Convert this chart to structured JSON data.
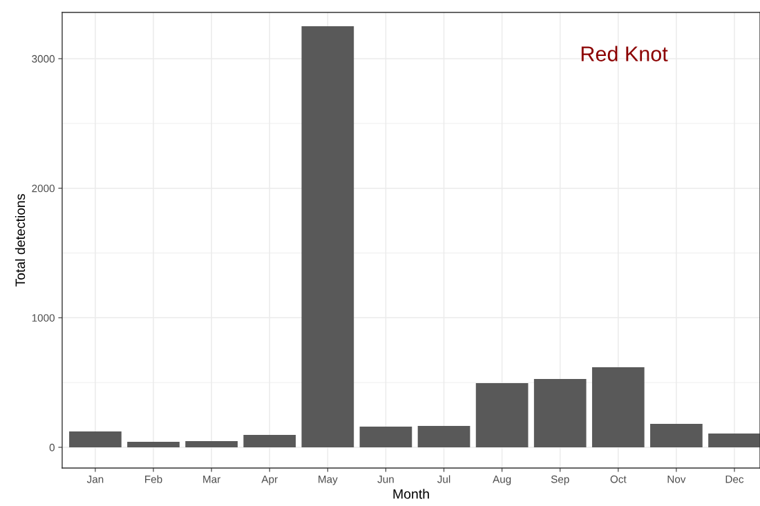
{
  "chart_data": {
    "type": "bar",
    "xlabel": "Month",
    "ylabel": "Total detections",
    "categories": [
      "Jan",
      "Feb",
      "Mar",
      "Apr",
      "May",
      "Jun",
      "Jul",
      "Aug",
      "Sep",
      "Oct",
      "Nov",
      "Dec"
    ],
    "values": [
      123,
      43,
      48,
      96,
      3250,
      160,
      165,
      496,
      528,
      618,
      181,
      107
    ],
    "color": "#595959",
    "ylim": [
      -160,
      3357
    ],
    "yticks": [
      0,
      1000,
      2000,
      3000
    ],
    "grid": true,
    "annotations": [
      "Red Knot"
    ]
  }
}
